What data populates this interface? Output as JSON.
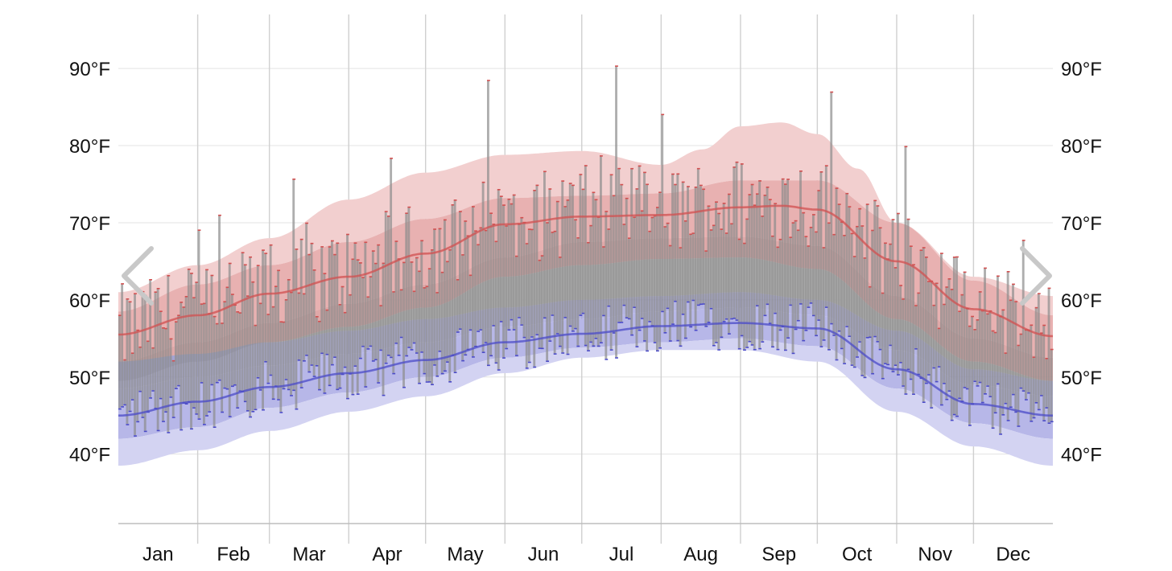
{
  "chart_data": {
    "type": "area",
    "x_unit": "day of year",
    "y_unit": "°F",
    "ylim": [
      31,
      97
    ],
    "xlim": [
      0,
      365
    ],
    "grid": true,
    "y_ticks": [
      40,
      50,
      60,
      70,
      80,
      90
    ],
    "y_tick_labels": [
      "40°F",
      "50°F",
      "60°F",
      "70°F",
      "80°F",
      "90°F"
    ],
    "month_starts": [
      0,
      31,
      59,
      90,
      120,
      151,
      181,
      212,
      243,
      273,
      304,
      334,
      365
    ],
    "x_tick_labels": [
      "Jan",
      "Feb",
      "Mar",
      "Apr",
      "May",
      "Jun",
      "Jul",
      "Aug",
      "Sep",
      "Oct",
      "Nov",
      "Dec"
    ],
    "colors": {
      "high": "#d25050",
      "low": "#4b4bc8",
      "observed": "#8c8c8c",
      "high_band_outer": "#f2cfcf",
      "high_band_mid": "#e8b1b1",
      "high_band_inner": "#d99999",
      "low_band_outer": "#d3d3f2",
      "low_band_mid": "#b7b7e8",
      "low_band_inner": "#9c9cda",
      "middle_band": "#b9b9b9",
      "grid": "#d0d0d0"
    },
    "series": [
      {
        "key": "average_high",
        "x": [
          0,
          31,
          59,
          90,
          120,
          151,
          181,
          212,
          243,
          259,
          273,
          304,
          334,
          365
        ],
        "values": [
          55.5,
          58.0,
          60.8,
          63.0,
          66.0,
          69.8,
          70.8,
          71.0,
          72.0,
          72.2,
          71.7,
          65.0,
          58.8,
          55.3
        ]
      },
      {
        "key": "average_low",
        "x": [
          0,
          31,
          59,
          90,
          120,
          151,
          181,
          212,
          243,
          273,
          304,
          334,
          365
        ],
        "values": [
          45.0,
          46.8,
          48.7,
          50.5,
          52.2,
          54.5,
          55.6,
          56.6,
          57.0,
          56.3,
          51.0,
          46.5,
          45.0
        ]
      }
    ],
    "bands": [
      {
        "key": "high_90th_percentile",
        "x": [
          0,
          31,
          59,
          90,
          120,
          151,
          181,
          212,
          228,
          243,
          259,
          273,
          289,
          304,
          334,
          365
        ],
        "values": [
          61.0,
          64.5,
          68.0,
          73.0,
          76.5,
          78.8,
          79.3,
          77.5,
          79.5,
          82.5,
          83.0,
          81.5,
          77.0,
          70.0,
          63.0,
          60.5
        ]
      },
      {
        "key": "high_75th_percentile",
        "x": [
          0,
          31,
          59,
          90,
          120,
          151,
          181,
          212,
          243,
          273,
          304,
          334,
          365
        ],
        "values": [
          58.5,
          62.0,
          64.5,
          67.5,
          70.5,
          73.2,
          73.5,
          73.8,
          75.5,
          75.5,
          70.0,
          62.5,
          58.0
        ]
      },
      {
        "key": "high_25th_percentile",
        "x": [
          0,
          31,
          59,
          90,
          120,
          151,
          181,
          212,
          243,
          273,
          304,
          334,
          365
        ],
        "values": [
          52.0,
          54.5,
          57.0,
          59.5,
          62.0,
          65.5,
          67.5,
          68.0,
          68.2,
          67.0,
          60.5,
          55.0,
          52.5
        ]
      },
      {
        "key": "high_10th_percentile",
        "x": [
          0,
          31,
          59,
          90,
          120,
          151,
          181,
          212,
          243,
          273,
          304,
          334,
          365
        ],
        "values": [
          49.5,
          52.0,
          54.5,
          56.5,
          59.0,
          63.0,
          64.5,
          65.3,
          65.5,
          64.0,
          57.5,
          52.0,
          49.5
        ]
      },
      {
        "key": "low_90th_percentile",
        "x": [
          0,
          31,
          59,
          90,
          120,
          151,
          181,
          212,
          243,
          273,
          304,
          334,
          365
        ],
        "values": [
          52.0,
          53.0,
          54.5,
          56.0,
          57.5,
          59.0,
          60.0,
          60.5,
          61.0,
          60.0,
          56.0,
          51.0,
          49.5
        ]
      },
      {
        "key": "low_75th_percentile",
        "x": [
          0,
          31,
          59,
          90,
          120,
          151,
          181,
          212,
          243,
          273,
          304,
          334,
          365
        ],
        "values": [
          48.5,
          50.0,
          51.5,
          53.0,
          54.5,
          56.5,
          57.5,
          58.5,
          59.0,
          58.0,
          53.5,
          49.0,
          47.5
        ]
      },
      {
        "key": "low_25th_percentile",
        "x": [
          0,
          31,
          59,
          90,
          120,
          151,
          181,
          212,
          243,
          273,
          304,
          334,
          365
        ],
        "values": [
          42.0,
          43.5,
          46.0,
          48.0,
          50.0,
          52.5,
          53.8,
          54.5,
          55.0,
          54.0,
          48.5,
          44.0,
          42.0
        ]
      },
      {
        "key": "low_10th_percentile",
        "x": [
          0,
          31,
          59,
          90,
          120,
          151,
          181,
          212,
          243,
          273,
          304,
          334,
          365
        ],
        "values": [
          38.5,
          40.5,
          43.0,
          45.5,
          47.5,
          50.5,
          52.5,
          53.5,
          53.5,
          52.0,
          45.5,
          41.0,
          38.5
        ]
      }
    ]
  },
  "navigation": {
    "prev_icon": "chevron-left-icon",
    "next_icon": "chevron-right-icon"
  }
}
